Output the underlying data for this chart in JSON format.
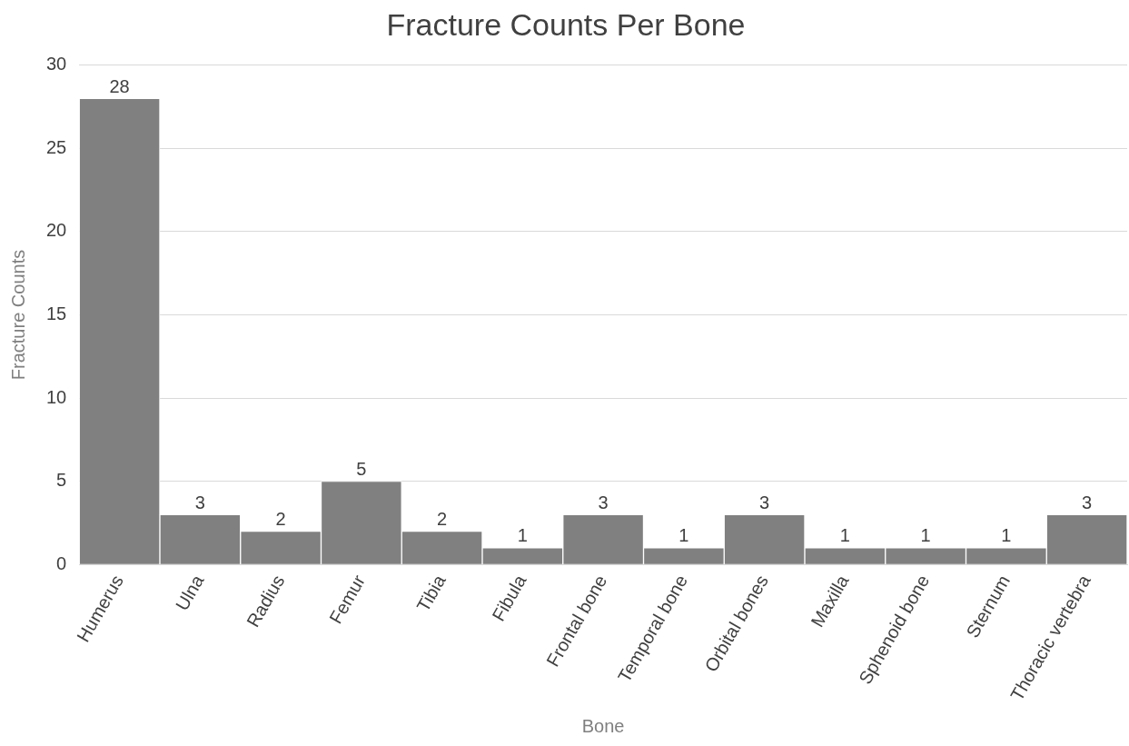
{
  "chart_data": {
    "type": "bar",
    "title": "Fracture Counts Per Bone",
    "xlabel": "Bone",
    "ylabel": "Fracture Counts",
    "categories": [
      "Humerus",
      "Ulna",
      "Radius",
      "Femur",
      "Tibia",
      "Fibula",
      "Frontal bone",
      "Temporal bone",
      "Orbital bones",
      "Maxilla",
      "Sphenoid bone",
      "Sternum",
      "Thoracic vertebra"
    ],
    "values": [
      28,
      3,
      2,
      5,
      2,
      1,
      3,
      1,
      3,
      1,
      1,
      1,
      3
    ],
    "color": "#808080",
    "ylim": [
      0,
      30
    ],
    "yticks": [
      0,
      5,
      10,
      15,
      20,
      25,
      30
    ],
    "grid": "y",
    "data_labels": true,
    "legend": false
  }
}
